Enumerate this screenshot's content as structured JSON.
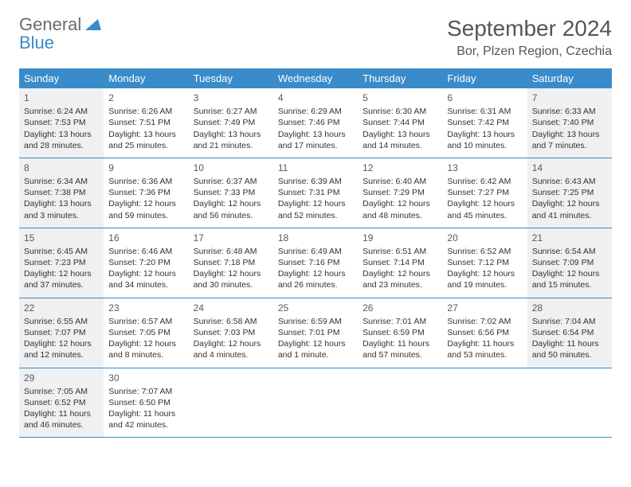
{
  "brand": {
    "general": "General",
    "blue": "Blue"
  },
  "title": "September 2024",
  "location": "Bor, Plzen Region, Czechia",
  "colors": {
    "header_bg": "#3a8bc9",
    "header_text": "#ffffff",
    "shaded_bg": "#eef0f1",
    "text": "#333333",
    "title_text": "#555555",
    "border": "#3a8bc9"
  },
  "dayNames": [
    "Sunday",
    "Monday",
    "Tuesday",
    "Wednesday",
    "Thursday",
    "Friday",
    "Saturday"
  ],
  "weeks": [
    [
      {
        "n": "1",
        "shaded": true,
        "sunrise": "6:24 AM",
        "sunset": "7:53 PM",
        "dh": "13",
        "dm": "28"
      },
      {
        "n": "2",
        "shaded": false,
        "sunrise": "6:26 AM",
        "sunset": "7:51 PM",
        "dh": "13",
        "dm": "25"
      },
      {
        "n": "3",
        "shaded": false,
        "sunrise": "6:27 AM",
        "sunset": "7:49 PM",
        "dh": "13",
        "dm": "21"
      },
      {
        "n": "4",
        "shaded": false,
        "sunrise": "6:29 AM",
        "sunset": "7:46 PM",
        "dh": "13",
        "dm": "17"
      },
      {
        "n": "5",
        "shaded": false,
        "sunrise": "6:30 AM",
        "sunset": "7:44 PM",
        "dh": "13",
        "dm": "14"
      },
      {
        "n": "6",
        "shaded": false,
        "sunrise": "6:31 AM",
        "sunset": "7:42 PM",
        "dh": "13",
        "dm": "10"
      },
      {
        "n": "7",
        "shaded": true,
        "sunrise": "6:33 AM",
        "sunset": "7:40 PM",
        "dh": "13",
        "dm": "7"
      }
    ],
    [
      {
        "n": "8",
        "shaded": true,
        "sunrise": "6:34 AM",
        "sunset": "7:38 PM",
        "dh": "13",
        "dm": "3"
      },
      {
        "n": "9",
        "shaded": false,
        "sunrise": "6:36 AM",
        "sunset": "7:36 PM",
        "dh": "12",
        "dm": "59"
      },
      {
        "n": "10",
        "shaded": false,
        "sunrise": "6:37 AM",
        "sunset": "7:33 PM",
        "dh": "12",
        "dm": "56"
      },
      {
        "n": "11",
        "shaded": false,
        "sunrise": "6:39 AM",
        "sunset": "7:31 PM",
        "dh": "12",
        "dm": "52"
      },
      {
        "n": "12",
        "shaded": false,
        "sunrise": "6:40 AM",
        "sunset": "7:29 PM",
        "dh": "12",
        "dm": "48"
      },
      {
        "n": "13",
        "shaded": false,
        "sunrise": "6:42 AM",
        "sunset": "7:27 PM",
        "dh": "12",
        "dm": "45"
      },
      {
        "n": "14",
        "shaded": true,
        "sunrise": "6:43 AM",
        "sunset": "7:25 PM",
        "dh": "12",
        "dm": "41"
      }
    ],
    [
      {
        "n": "15",
        "shaded": true,
        "sunrise": "6:45 AM",
        "sunset": "7:23 PM",
        "dh": "12",
        "dm": "37"
      },
      {
        "n": "16",
        "shaded": false,
        "sunrise": "6:46 AM",
        "sunset": "7:20 PM",
        "dh": "12",
        "dm": "34"
      },
      {
        "n": "17",
        "shaded": false,
        "sunrise": "6:48 AM",
        "sunset": "7:18 PM",
        "dh": "12",
        "dm": "30"
      },
      {
        "n": "18",
        "shaded": false,
        "sunrise": "6:49 AM",
        "sunset": "7:16 PM",
        "dh": "12",
        "dm": "26"
      },
      {
        "n": "19",
        "shaded": false,
        "sunrise": "6:51 AM",
        "sunset": "7:14 PM",
        "dh": "12",
        "dm": "23"
      },
      {
        "n": "20",
        "shaded": false,
        "sunrise": "6:52 AM",
        "sunset": "7:12 PM",
        "dh": "12",
        "dm": "19"
      },
      {
        "n": "21",
        "shaded": true,
        "sunrise": "6:54 AM",
        "sunset": "7:09 PM",
        "dh": "12",
        "dm": "15"
      }
    ],
    [
      {
        "n": "22",
        "shaded": true,
        "sunrise": "6:55 AM",
        "sunset": "7:07 PM",
        "dh": "12",
        "dm": "12"
      },
      {
        "n": "23",
        "shaded": false,
        "sunrise": "6:57 AM",
        "sunset": "7:05 PM",
        "dh": "12",
        "dm": "8"
      },
      {
        "n": "24",
        "shaded": false,
        "sunrise": "6:58 AM",
        "sunset": "7:03 PM",
        "dh": "12",
        "dm": "4"
      },
      {
        "n": "25",
        "shaded": false,
        "sunrise": "6:59 AM",
        "sunset": "7:01 PM",
        "dh": "12",
        "dm": "1",
        "singular": true
      },
      {
        "n": "26",
        "shaded": false,
        "sunrise": "7:01 AM",
        "sunset": "6:59 PM",
        "dh": "11",
        "dm": "57"
      },
      {
        "n": "27",
        "shaded": false,
        "sunrise": "7:02 AM",
        "sunset": "6:56 PM",
        "dh": "11",
        "dm": "53"
      },
      {
        "n": "28",
        "shaded": true,
        "sunrise": "7:04 AM",
        "sunset": "6:54 PM",
        "dh": "11",
        "dm": "50"
      }
    ],
    [
      {
        "n": "29",
        "shaded": true,
        "sunrise": "7:05 AM",
        "sunset": "6:52 PM",
        "dh": "11",
        "dm": "46"
      },
      {
        "n": "30",
        "shaded": false,
        "sunrise": "7:07 AM",
        "sunset": "6:50 PM",
        "dh": "11",
        "dm": "42"
      },
      null,
      null,
      null,
      null,
      null
    ]
  ],
  "labels": {
    "sunrise": "Sunrise:",
    "sunset": "Sunset:",
    "daylight": "Daylight:",
    "hours": "hours",
    "and": "and",
    "minutes": "minutes.",
    "minute": "minute."
  }
}
